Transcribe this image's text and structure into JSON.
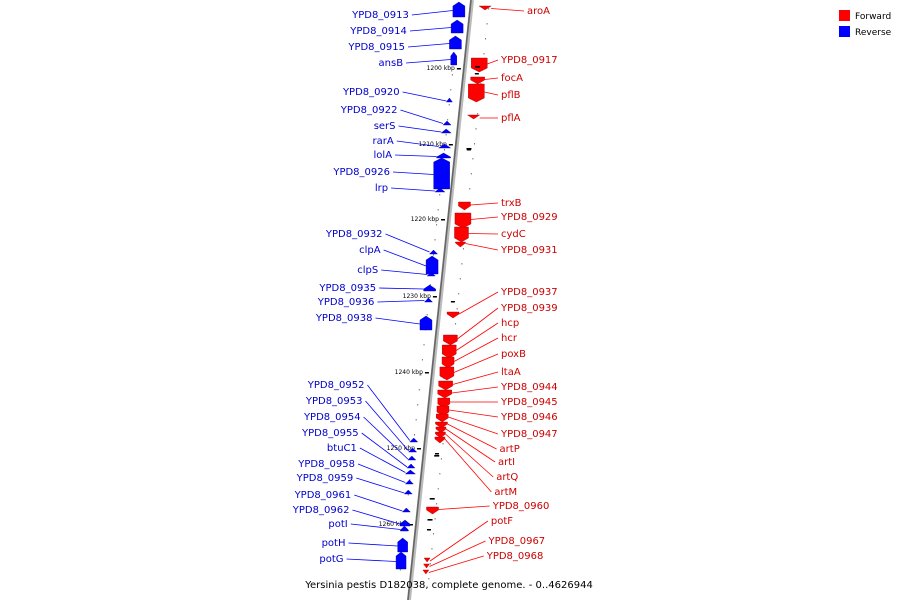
{
  "caption": "Yersinia pestis D182038, complete genome. - 0..4626944",
  "legend": {
    "forward": {
      "label": "Forward",
      "color": "#ff0000"
    },
    "reverse": {
      "label": "Reverse",
      "color": "#0000ff"
    }
  },
  "ticks": [
    "1200 kbp",
    "1210 kbp",
    "1220 kbp",
    "1230 kbp",
    "1240 kbp",
    "1250 kbp",
    "1260 kbp"
  ],
  "reverse_genes": [
    "YPD8_0913",
    "YPD8_0914",
    "YPD8_0915",
    "ansB",
    "YPD8_0920",
    "YPD8_0922",
    "serS",
    "rarA",
    "lolA",
    "YPD8_0926",
    "lrp",
    "YPD8_0932",
    "clpA",
    "clpS",
    "YPD8_0935",
    "YPD8_0936",
    "YPD8_0938",
    "YPD8_0952",
    "YPD8_0953",
    "YPD8_0954",
    "YPD8_0955",
    "btuC1",
    "YPD8_0958",
    "YPD8_0959",
    "YPD8_0961",
    "YPD8_0962",
    "potI",
    "potH",
    "potG"
  ],
  "forward_genes": [
    "aroA",
    "YPD8_0917",
    "focA",
    "pflB",
    "pflA",
    "trxB",
    "YPD8_0929",
    "cydC",
    "YPD8_0931",
    "YPD8_0937",
    "YPD8_0939",
    "hcp",
    "hcr",
    "poxB",
    "ltaA",
    "YPD8_0944",
    "YPD8_0945",
    "YPD8_0946",
    "YPD8_0947",
    "artP",
    "artI",
    "artQ",
    "artM",
    "YPD8_0960",
    "potF",
    "YPD8_0967",
    "YPD8_0968"
  ]
}
